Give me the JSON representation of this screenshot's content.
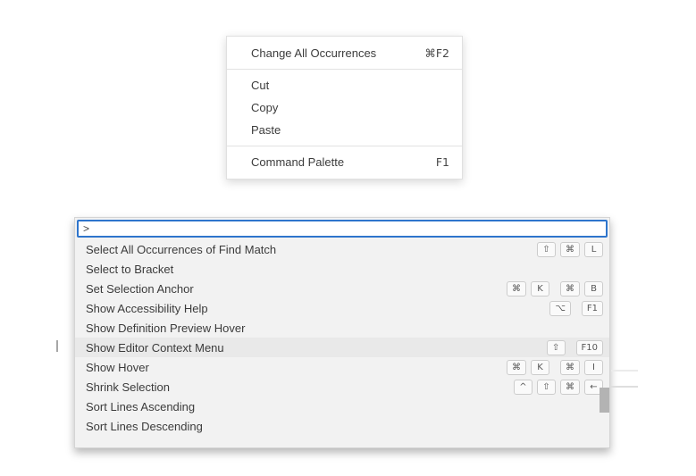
{
  "colors": {
    "accent_blue": "#2e75cc",
    "palette_bg": "#f2f2f2",
    "highlight_bg": "#e9e9e9",
    "menu_bg": "#ffffff",
    "key_bg": "#fafafa",
    "key_border": "#cccccc",
    "scrollbar_thumb": "#b3b3b3",
    "text": "#3c3c3c"
  },
  "context_menu": {
    "items": [
      {
        "type": "item",
        "label": "Change All Occurrences",
        "shortcut": "⌘F2"
      },
      {
        "type": "divider"
      },
      {
        "type": "item",
        "label": "Cut",
        "shortcut": ""
      },
      {
        "type": "item",
        "label": "Copy",
        "shortcut": ""
      },
      {
        "type": "item",
        "label": "Paste",
        "shortcut": ""
      },
      {
        "type": "divider"
      },
      {
        "type": "item",
        "label": "Command Palette",
        "shortcut": "F1"
      }
    ]
  },
  "command_palette": {
    "input_value": ">",
    "items": [
      {
        "label": "Select All Occurrences of Find Match",
        "key_groups": [
          [
            "⇧",
            "⌘",
            "L"
          ]
        ],
        "highlighted": false
      },
      {
        "label": "Select to Bracket",
        "key_groups": [],
        "highlighted": false
      },
      {
        "label": "Set Selection Anchor",
        "key_groups": [
          [
            "⌘",
            "K"
          ],
          [
            "⌘",
            "B"
          ]
        ],
        "highlighted": false
      },
      {
        "label": "Show Accessibility Help",
        "key_groups": [
          [
            "⌥"
          ],
          [
            "F1"
          ]
        ],
        "highlighted": false
      },
      {
        "label": "Show Definition Preview Hover",
        "key_groups": [],
        "highlighted": false
      },
      {
        "label": "Show Editor Context Menu",
        "key_groups": [
          [
            "⇧"
          ],
          [
            "F10"
          ]
        ],
        "highlighted": true
      },
      {
        "label": "Show Hover",
        "key_groups": [
          [
            "⌘",
            "K"
          ],
          [
            "⌘",
            "I"
          ]
        ],
        "highlighted": false
      },
      {
        "label": "Shrink Selection",
        "key_groups": [
          [
            "^",
            "⇧",
            "⌘",
            "←"
          ]
        ],
        "highlighted": false
      },
      {
        "label": "Sort Lines Ascending",
        "key_groups": [],
        "highlighted": false
      },
      {
        "label": "Sort Lines Descending",
        "key_groups": [],
        "highlighted": false
      }
    ]
  }
}
